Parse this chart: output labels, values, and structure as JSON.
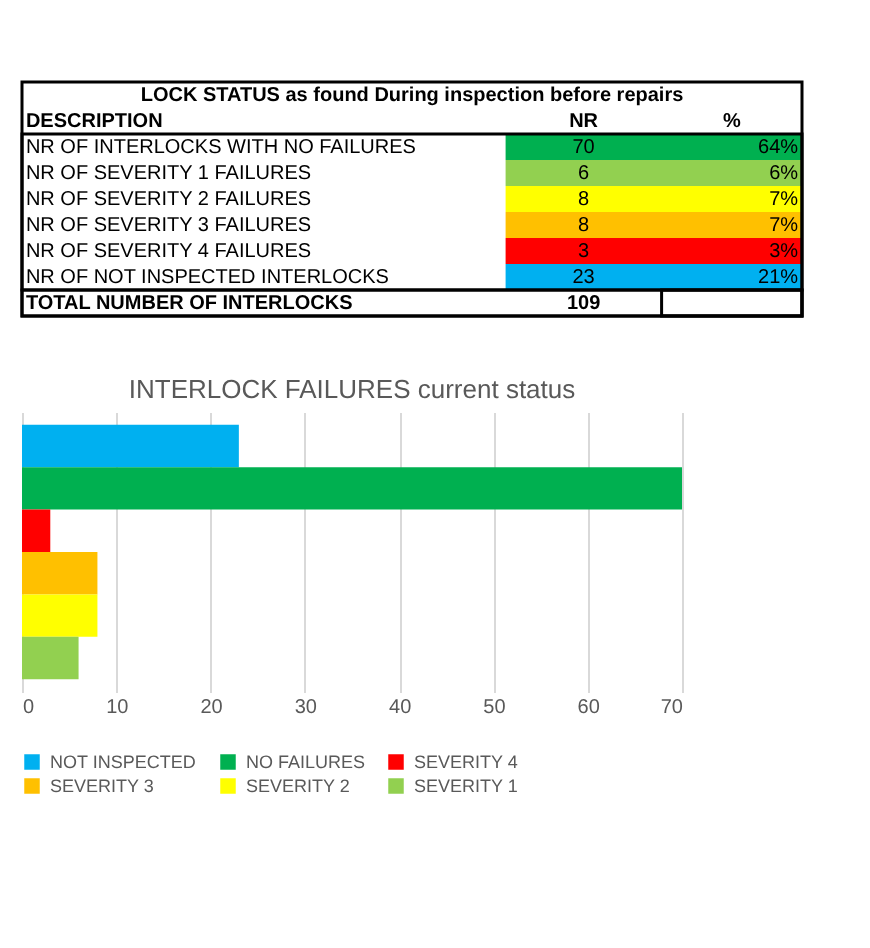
{
  "chart_data": [
    {
      "type": "other",
      "title": "LOCK STATUS as found During inspection before repairs",
      "categories": [
        "NR OF INTERLOCKS WITH NO FAILURES",
        "NR OF SEVERITY 1 FAILURES",
        "NR OF SEVERITY 2 FAILURES",
        "NR OF SEVERITY 3 FAILURES",
        "NR OF SEVERITY 4 FAILURES",
        "NR OF NOT INSPECTED INTERLOCKS"
      ],
      "values": [
        70,
        6,
        8,
        8,
        3,
        23
      ],
      "data_labels": true,
      "colors": [
        "#00b050",
        "#92d050",
        "#ffff00",
        "#ffc000",
        "#ff0000",
        "#00b0f0"
      ],
      "annotations": [
        "DESCRIPTION",
        "NR",
        "%",
        "TOTAL NUMBER OF INTERLOCKS",
        "109",
        "64%",
        "6%",
        "7%",
        "7%",
        "3%",
        "21%"
      ]
    },
    {
      "type": "bar",
      "orientation": "horizontal",
      "title": "INTERLOCK FAILURES current status",
      "categories": [
        null,
        null,
        null,
        null,
        null,
        null
      ],
      "series": [
        {
          "name": "NOT INSPECTED",
          "color": "#00b0f0",
          "values": [
            23,
            null,
            null,
            null,
            null,
            null
          ]
        },
        {
          "name": "NO FAILURES",
          "color": "#00b050",
          "values": [
            null,
            70,
            null,
            null,
            null,
            null
          ]
        },
        {
          "name": "SEVERITY 4",
          "color": "#ff0000",
          "values": [
            null,
            null,
            3,
            null,
            null,
            null
          ]
        },
        {
          "name": "SEVERITY 3",
          "color": "#ffc000",
          "values": [
            null,
            null,
            null,
            8,
            null,
            null
          ]
        },
        {
          "name": "SEVERITY 2",
          "color": "#ffff00",
          "values": [
            null,
            null,
            null,
            null,
            8,
            null
          ]
        },
        {
          "name": "SEVERITY 1",
          "color": "#92d050",
          "values": [
            null,
            null,
            null,
            null,
            null,
            6
          ]
        }
      ],
      "xlim": [
        0,
        70
      ],
      "xticks": [
        0,
        10,
        20,
        30,
        40,
        50,
        60,
        70
      ],
      "grid": "x",
      "legend": "bottom",
      "tick_labels": "x"
    }
  ]
}
